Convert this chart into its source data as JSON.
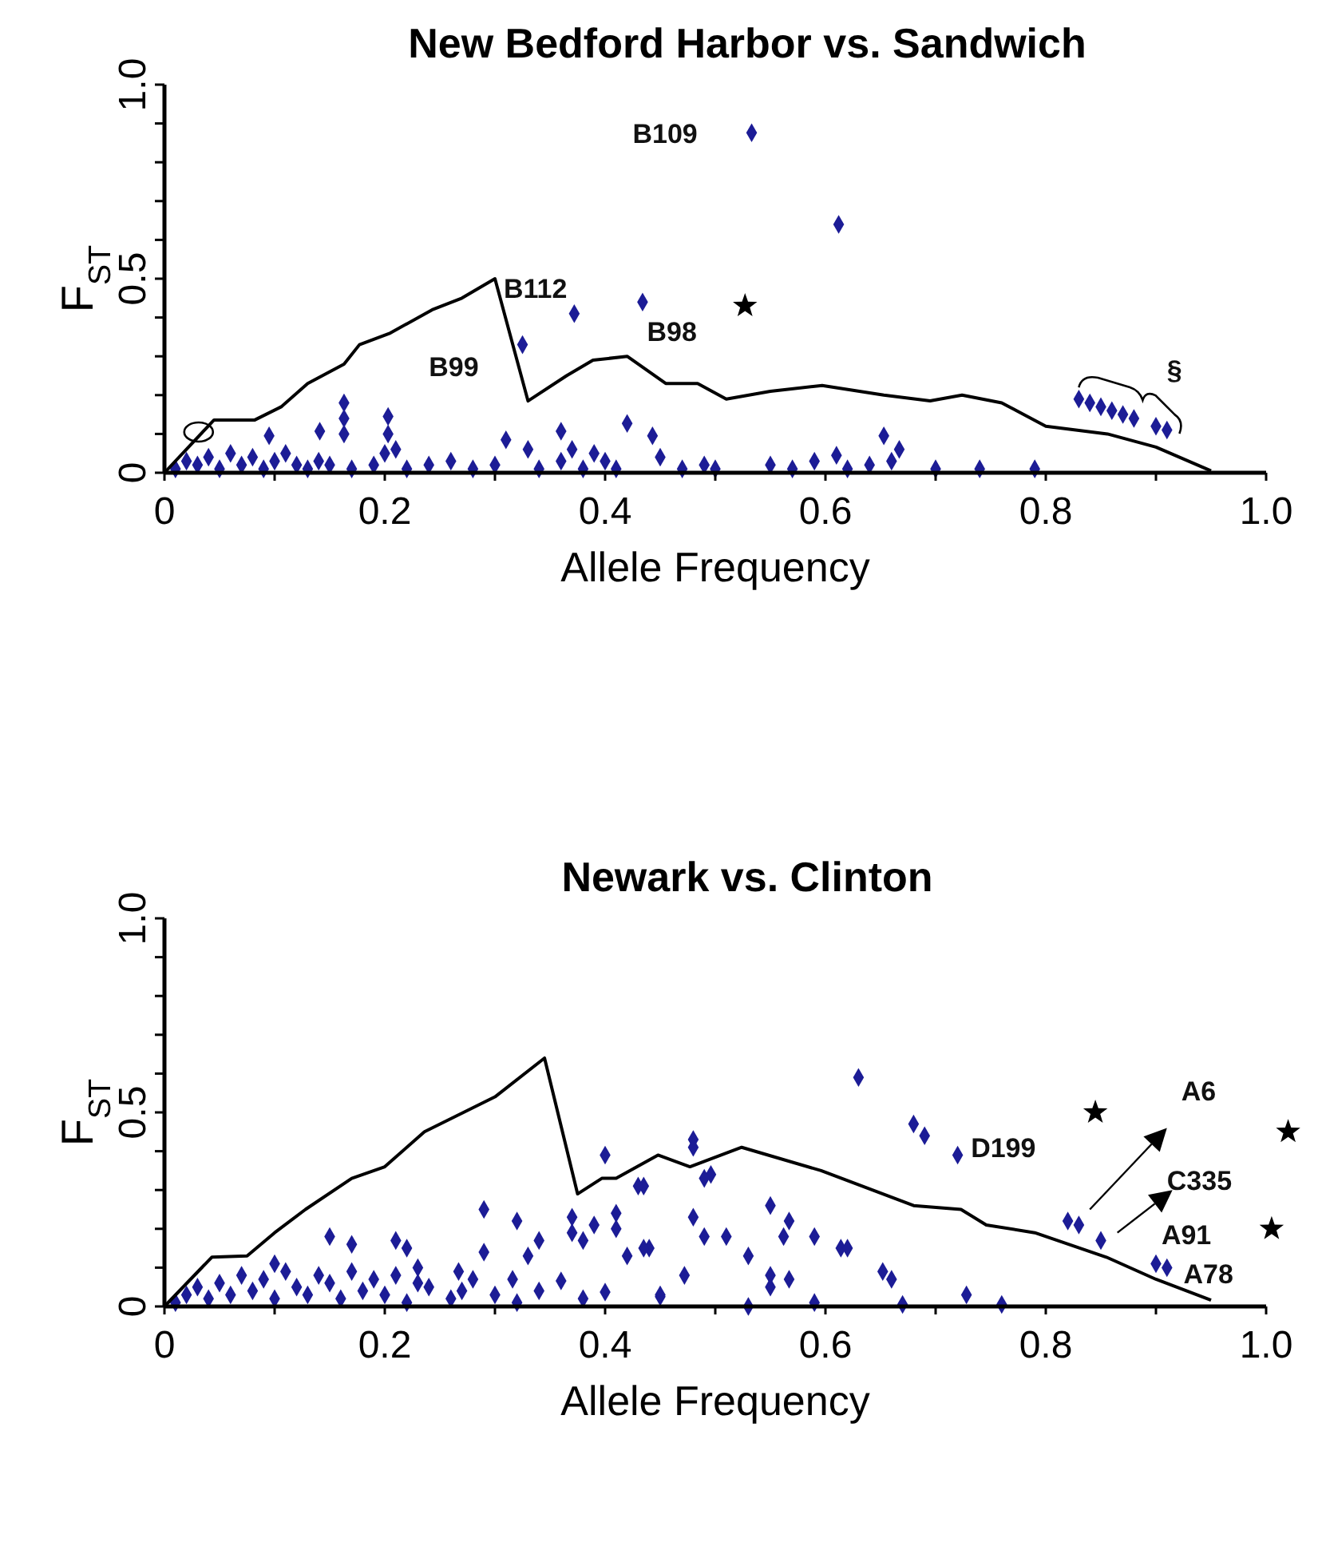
{
  "chart_data": [
    {
      "type": "scatter",
      "title": "New Bedford Harbor vs. Sandwich",
      "xlabel": "Allele Frequency",
      "ylabel": "F$_{ST}$",
      "xlim": [
        0,
        1
      ],
      "ylim": [
        0,
        1
      ],
      "xticks": [
        {
          "value": 0,
          "label": "0"
        },
        {
          "value": 0.1,
          "label": null
        },
        0.2,
        {
          "value": 0.3,
          "label": null
        },
        0.4,
        {
          "value": 0.5,
          "label": null
        },
        0.6,
        {
          "value": 0.7,
          "label": null
        },
        0.8,
        {
          "value": 0.9,
          "label": null
        },
        {
          "value": 1,
          "label": "1.0"
        }
      ],
      "yticks": [
        {
          "value": 0,
          "label": "0"
        },
        {
          "value": 0.1,
          "label": null
        },
        {
          "value": 0.2,
          "label": null
        },
        {
          "value": 0.3,
          "label": null
        },
        {
          "value": 0.4,
          "label": null
        },
        0.5,
        {
          "value": 0.6,
          "label": null
        },
        {
          "value": 0.7,
          "label": null
        },
        {
          "value": 0.8,
          "label": null
        },
        {
          "value": 0.9,
          "label": null
        },
        {
          "value": 1,
          "label": "1.0"
        }
      ],
      "grid": false,
      "legend": false,
      "marker": "diamond",
      "series": [
        {
          "type": "line",
          "color": "#000000",
          "marker": "none",
          "x": [
            0,
            0.045,
            0.082,
            0.106,
            0.13,
            0.163,
            0.177,
            0.205,
            0.243,
            0.27,
            0.3,
            0.33,
            0.365,
            0.389,
            0.42,
            0.455,
            0.484,
            0.51,
            0.55,
            0.597,
            0.653,
            0.695,
            0.724,
            0.76,
            0.8,
            0.856,
            0.9,
            0.95
          ],
          "values": [
            0,
            0.136,
            0.136,
            0.17,
            0.23,
            0.28,
            0.33,
            0.36,
            0.42,
            0.45,
            0.5,
            0.185,
            0.25,
            0.29,
            0.3,
            0.23,
            0.23,
            0.19,
            0.21,
            0.225,
            0.2,
            0.185,
            0.2,
            0.18,
            0.12,
            0.1,
            0.066,
            0.005
          ]
        },
        {
          "color": "#1c1c96",
          "x": [
            0.533,
            0.612,
            0.372,
            0.434,
            0.325,
            0.83,
            0.84,
            0.85,
            0.86,
            0.87,
            0.88,
            0.9,
            0.91,
            0.095,
            0.141,
            0.163,
            0.163,
            0.163,
            0.203,
            0.203,
            0.31,
            0.36,
            0.42,
            0.443,
            0.45,
            0.653,
            0.667,
            0.61,
            0.33,
            0.37,
            0.39,
            0.2,
            0.21,
            0.01,
            0.02,
            0.03,
            0.04,
            0.05,
            0.06,
            0.07,
            0.08,
            0.09,
            0.1,
            0.11,
            0.12,
            0.13,
            0.14,
            0.15,
            0.17,
            0.19,
            0.22,
            0.24,
            0.26,
            0.28,
            0.3,
            0.34,
            0.36,
            0.38,
            0.4,
            0.41,
            0.47,
            0.49,
            0.5,
            0.55,
            0.57,
            0.59,
            0.62,
            0.64,
            0.66,
            0.7,
            0.74,
            0.79
          ],
          "values": [
            0.876,
            0.64,
            0.41,
            0.44,
            0.33,
            0.19,
            0.18,
            0.17,
            0.16,
            0.15,
            0.14,
            0.12,
            0.11,
            0.095,
            0.107,
            0.18,
            0.14,
            0.1,
            0.145,
            0.1,
            0.085,
            0.107,
            0.127,
            0.095,
            0.04,
            0.095,
            0.06,
            0.045,
            0.06,
            0.06,
            0.05,
            0.05,
            0.06,
            0.01,
            0.03,
            0.02,
            0.04,
            0.01,
            0.05,
            0.02,
            0.04,
            0.01,
            0.03,
            0.05,
            0.02,
            0.01,
            0.03,
            0.02,
            0.01,
            0.02,
            0.01,
            0.02,
            0.03,
            0.01,
            0.02,
            0.01,
            0.03,
            0.01,
            0.03,
            0.01,
            0.01,
            0.02,
            0.01,
            0.02,
            0.01,
            0.03,
            0.01,
            0.02,
            0.03,
            0.01,
            0.01,
            0.01
          ]
        }
      ],
      "annotations": [
        "B109",
        "B112",
        "B99",
        "B98",
        "§"
      ]
    },
    {
      "type": "scatter",
      "title": "Newark vs. Clinton",
      "xlabel": "Allele Frequency",
      "ylabel": "F$_{ST}$",
      "xlim": [
        0,
        1
      ],
      "ylim": [
        0,
        1
      ],
      "xticks": [
        {
          "value": 0,
          "label": "0"
        },
        {
          "value": 0.1,
          "label": null
        },
        0.2,
        {
          "value": 0.3,
          "label": null
        },
        0.4,
        {
          "value": 0.5,
          "label": null
        },
        0.6,
        {
          "value": 0.7,
          "label": null
        },
        0.8,
        {
          "value": 0.9,
          "label": null
        },
        {
          "value": 1,
          "label": "1.0"
        }
      ],
      "yticks": [
        {
          "value": 0,
          "label": "0"
        },
        {
          "value": 0.1,
          "label": null
        },
        {
          "value": 0.2,
          "label": null
        },
        {
          "value": 0.3,
          "label": null
        },
        {
          "value": 0.4,
          "label": null
        },
        0.5,
        {
          "value": 0.6,
          "label": null
        },
        {
          "value": 0.7,
          "label": null
        },
        {
          "value": 0.8,
          "label": null
        },
        {
          "value": 0.9,
          "label": null
        },
        {
          "value": 1,
          "label": "1.0"
        }
      ],
      "grid": false,
      "legend": false,
      "marker": "diamond",
      "series": [
        {
          "type": "line",
          "color": "#000000",
          "marker": "none",
          "x": [
            0,
            0.043,
            0.075,
            0.1,
            0.128,
            0.17,
            0.2,
            0.236,
            0.3,
            0.345,
            0.375,
            0.397,
            0.41,
            0.448,
            0.477,
            0.524,
            0.596,
            0.68,
            0.723,
            0.746,
            0.79,
            0.855,
            0.9,
            0.95
          ],
          "values": [
            0,
            0.127,
            0.13,
            0.19,
            0.25,
            0.33,
            0.36,
            0.45,
            0.54,
            0.64,
            0.29,
            0.33,
            0.33,
            0.39,
            0.36,
            0.41,
            0.35,
            0.26,
            0.25,
            0.21,
            0.19,
            0.127,
            0.07,
            0.016
          ]
        },
        {
          "color": "#1c1c96",
          "x": [
            0.63,
            0.68,
            0.69,
            0.72,
            0.82,
            0.83,
            0.85,
            0.9,
            0.91,
            0.48,
            0.48,
            0.496,
            0.49,
            0.435,
            0.48,
            0.49,
            0.51,
            0.53,
            0.55,
            0.567,
            0.562,
            0.59,
            0.614,
            0.62,
            0.44,
            0.472,
            0.55,
            0.567,
            0.55,
            0.652,
            0.66,
            0.45,
            0.53,
            0.59,
            0.67,
            0.728,
            0.76,
            0.4,
            0.43,
            0.29,
            0.32,
            0.37,
            0.39,
            0.41,
            0.41,
            0.42,
            0.435,
            0.37,
            0.38,
            0.34,
            0.33,
            0.29,
            0.15,
            0.17,
            0.21,
            0.22,
            0.1,
            0.23,
            0.23,
            0.267,
            0.28,
            0.316,
            0.36,
            0.4,
            0.45,
            0.01,
            0.02,
            0.03,
            0.04,
            0.05,
            0.06,
            0.07,
            0.08,
            0.09,
            0.1,
            0.11,
            0.12,
            0.13,
            0.14,
            0.15,
            0.16,
            0.17,
            0.18,
            0.19,
            0.2,
            0.21,
            0.22,
            0.24,
            0.26,
            0.27,
            0.3,
            0.32,
            0.34,
            0.38
          ],
          "values": [
            0.59,
            0.47,
            0.44,
            0.39,
            0.22,
            0.21,
            0.17,
            0.11,
            0.1,
            0.43,
            0.41,
            0.34,
            0.33,
            0.31,
            0.23,
            0.18,
            0.18,
            0.13,
            0.26,
            0.22,
            0.18,
            0.18,
            0.15,
            0.15,
            0.15,
            0.08,
            0.08,
            0.07,
            0.05,
            0.09,
            0.07,
            0.025,
            0,
            0.01,
            0.005,
            0.03,
            0.005,
            0.39,
            0.31,
            0.25,
            0.22,
            0.23,
            0.21,
            0.24,
            0.2,
            0.13,
            0.15,
            0.19,
            0.17,
            0.17,
            0.13,
            0.14,
            0.18,
            0.16,
            0.17,
            0.15,
            0.11,
            0.1,
            0.06,
            0.09,
            0.07,
            0.07,
            0.066,
            0.037,
            0.03,
            0.01,
            0.03,
            0.05,
            0.02,
            0.06,
            0.03,
            0.08,
            0.04,
            0.07,
            0.02,
            0.09,
            0.05,
            0.03,
            0.08,
            0.06,
            0.02,
            0.09,
            0.04,
            0.07,
            0.03,
            0.08,
            0.01,
            0.05,
            0.02,
            0.04,
            0.03,
            0.01,
            0.04,
            0.02
          ]
        }
      ],
      "annotations": [
        "D199",
        "A6",
        "C335",
        "A91",
        "A78"
      ]
    }
  ]
}
